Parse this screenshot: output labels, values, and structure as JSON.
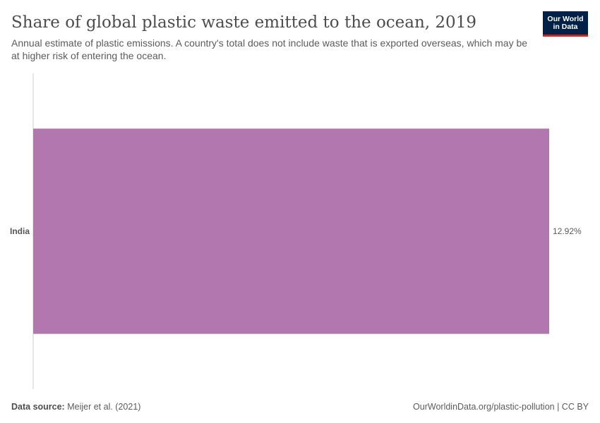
{
  "header": {
    "title": "Share of global plastic waste emitted to the ocean, 2019",
    "subtitle": "Annual estimate of plastic emissions. A country's total does not include waste that is exported overseas, which may be at higher risk of entering the ocean.",
    "logo_line1": "Our World",
    "logo_line2": "in Data"
  },
  "chart_data": {
    "type": "bar",
    "orientation": "horizontal",
    "categories": [
      "India"
    ],
    "values": [
      12.92
    ],
    "value_labels": [
      "12.92%"
    ],
    "unit": "%",
    "xlim": [
      0,
      12.92
    ],
    "grid": false,
    "bar_color": "#b377af"
  },
  "footer": {
    "source_label": "Data source:",
    "source_text": "Meijer et al. (2021)",
    "url_text": "OurWorldinData.org/plastic-pollution | CC BY"
  }
}
